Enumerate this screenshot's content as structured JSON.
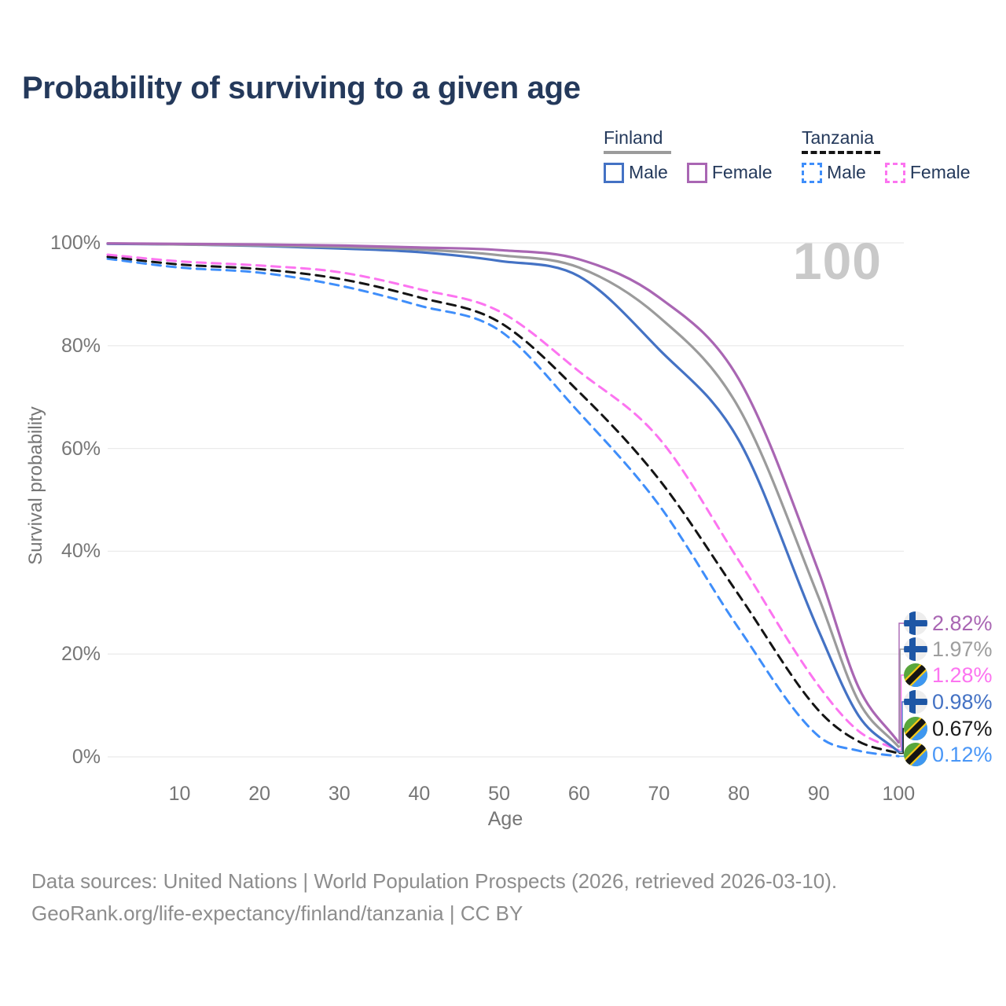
{
  "title": "Probability of surviving to a given age",
  "legend": {
    "groups": [
      {
        "name": "Finland",
        "line_style": "solid",
        "header_swatch_color": "#9b9b9b",
        "items": [
          {
            "label": "Male",
            "color": "#4472c4",
            "dashed": false
          },
          {
            "label": "Female",
            "color": "#a966b3",
            "dashed": false
          }
        ]
      },
      {
        "name": "Tanzania",
        "line_style": "dashed",
        "header_swatch_color": "#141414",
        "items": [
          {
            "label": "Male",
            "color": "#3f8efa",
            "dashed": true
          },
          {
            "label": "Female",
            "color": "#fc74f0",
            "dashed": true
          }
        ]
      }
    ]
  },
  "annotation": {
    "hovered_age": "100"
  },
  "axes": {
    "x": {
      "label": "Age",
      "ticks": [
        {
          "label": "10",
          "value": 10
        },
        {
          "label": "20",
          "value": 20
        },
        {
          "label": "30",
          "value": 30
        },
        {
          "label": "40",
          "value": 40
        },
        {
          "label": "50",
          "value": 50
        },
        {
          "label": "60",
          "value": 60
        },
        {
          "label": "70",
          "value": 70
        },
        {
          "label": "80",
          "value": 80
        },
        {
          "label": "90",
          "value": 90
        },
        {
          "label": "100",
          "value": 100
        }
      ]
    },
    "y": {
      "label": "Survival probability",
      "ticks": [
        {
          "label": "0%",
          "value": 0
        },
        {
          "label": "20%",
          "value": 20
        },
        {
          "label": "40%",
          "value": 40
        },
        {
          "label": "60%",
          "value": 60
        },
        {
          "label": "80%",
          "value": 80
        },
        {
          "label": "100%",
          "value": 100
        }
      ]
    }
  },
  "chart_data": {
    "type": "line",
    "title": "Probability of surviving to a given age",
    "xlabel": "Age",
    "ylabel": "Survival probability",
    "xlim": [
      1,
      100
    ],
    "ylim": [
      0,
      100
    ],
    "grid": "horizontal",
    "legend_position": "top-right",
    "x": [
      1,
      10,
      20,
      30,
      40,
      50,
      60,
      70,
      80,
      90,
      95,
      100
    ],
    "series": [
      {
        "name": "Finland Female",
        "country": "Finland",
        "sex": "Female",
        "color": "#a966b3",
        "dashed": false,
        "values": [
          99.9,
          99.8,
          99.7,
          99.5,
          99.1,
          98.6,
          96.8,
          89.4,
          73.5,
          36.0,
          13.5,
          2.82
        ]
      },
      {
        "name": "Finland (both sexes)",
        "country": "Finland",
        "sex": "Both",
        "color": "#9b9b9b",
        "dashed": false,
        "values": [
          99.9,
          99.7,
          99.5,
          99.2,
          98.7,
          97.6,
          95.2,
          85.6,
          67.9,
          31.0,
          10.8,
          1.97
        ]
      },
      {
        "name": "Tanzania Female",
        "country": "Tanzania",
        "sex": "Female",
        "color": "#fc74f0",
        "dashed": true,
        "values": [
          97.7,
          96.4,
          95.6,
          94.3,
          91.0,
          86.7,
          75.0,
          62.0,
          38.2,
          13.8,
          5.0,
          1.28
        ]
      },
      {
        "name": "Finland Male",
        "country": "Finland",
        "sex": "Male",
        "color": "#4472c4",
        "dashed": false,
        "values": [
          99.8,
          99.7,
          99.4,
          98.9,
          98.2,
          96.5,
          93.5,
          79.3,
          61.6,
          24.5,
          8.0,
          0.98
        ]
      },
      {
        "name": "Tanzania (both sexes)",
        "country": "Tanzania",
        "sex": "Both",
        "color": "#141414",
        "dashed": true,
        "values": [
          97.3,
          95.8,
          94.9,
          93.0,
          89.4,
          84.6,
          71.0,
          54.0,
          31.5,
          9.0,
          3.0,
          0.67
        ]
      },
      {
        "name": "Tanzania Male",
        "country": "Tanzania",
        "sex": "Male",
        "color": "#3f8efa",
        "dashed": true,
        "values": [
          96.9,
          95.2,
          94.2,
          91.7,
          87.8,
          83.0,
          67.0,
          49.0,
          25.0,
          4.0,
          1.2,
          0.12
        ]
      }
    ]
  },
  "end_labels": [
    {
      "text": "2.82%",
      "value": 2.82,
      "flag": "finland",
      "color": "#a966b3"
    },
    {
      "text": "1.97%",
      "value": 1.97,
      "flag": "finland",
      "color": "#9e9e9e"
    },
    {
      "text": "1.28%",
      "value": 1.28,
      "flag": "tanzania",
      "color": "#fc74f0"
    },
    {
      "text": "0.98%",
      "value": 0.98,
      "flag": "finland",
      "color": "#4472c4"
    },
    {
      "text": "0.67%",
      "value": 0.67,
      "flag": "tanzania",
      "color": "#1a1a1a"
    },
    {
      "text": "0.12%",
      "value": 0.12,
      "flag": "tanzania",
      "color": "#4a97f7"
    }
  ],
  "footer": {
    "line1": "Data sources: United Nations | World Population Prospects (2026, retrieved 2026-03-10).",
    "line2": "GeoRank.org/life-expectancy/finland/tanzania | CC BY"
  }
}
